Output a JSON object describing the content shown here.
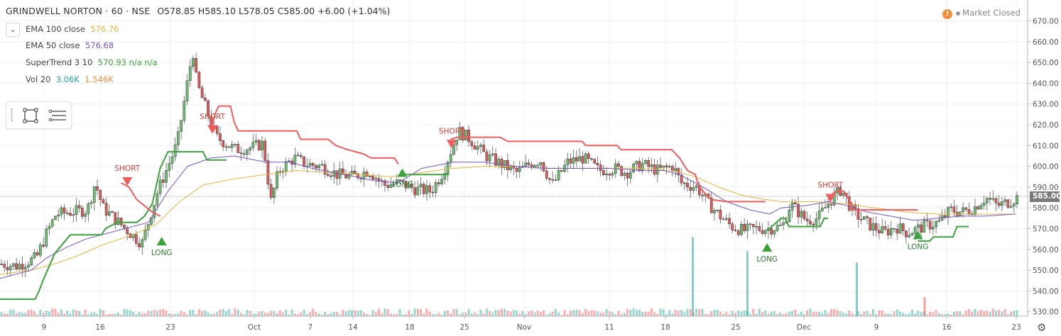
{
  "header": {
    "symbol": "GRINDWELL NORTON · 60 · NSE",
    "open": "O578.85",
    "high": "H585.10",
    "low": "L578.05",
    "close": "C585.00",
    "change": "+6.00 (+1.04%)"
  },
  "legend": [
    {
      "name": "EMA 100 close",
      "value": "576.76",
      "color": "#e8b53d"
    },
    {
      "name": "EMA 50 close",
      "value": "576.68",
      "color": "#7b52c7"
    },
    {
      "name": "SuperTrend 3 10",
      "value": "570.93 n/a n/a",
      "color": "#3ba33b",
      "extra_color": "#ef5350"
    },
    {
      "name": "Vol 20",
      "value": "3.06K",
      "value2": "1.546K",
      "color": "#26a69a",
      "color2": "#f68e3c"
    }
  ],
  "market_status": "Market Closed",
  "last_price": "585.00",
  "colors": {
    "up": "#26a69a",
    "down": "#ef5350",
    "ema100": "#e8b53d",
    "ema50": "#7b52c7",
    "st_up": "#3ba33b",
    "st_down": "#f25c5c",
    "grid": "#eef0f3"
  },
  "icons": {
    "collapse": "chevron-down-icon",
    "rect_tool": "rectangle-tool-icon",
    "lines_tool": "lines-tool-icon",
    "settings": "gear-icon",
    "warning": "warning-icon"
  },
  "chart_data": {
    "type": "candlestick",
    "title": "GRINDWELL NORTON · 60 · NSE",
    "x_tick_labels": [
      "9",
      "16",
      "23",
      "Oct",
      "7",
      "14",
      "18",
      "25",
      "Nov",
      "11",
      "18",
      "25",
      "Dec",
      "9",
      "16",
      "23"
    ],
    "y_tick_labels": [
      "530.00",
      "540.00",
      "550.00",
      "560.00",
      "570.00",
      "580.00",
      "590.00",
      "600.00",
      "610.00",
      "620.00",
      "630.00",
      "640.00",
      "650.00",
      "660.00",
      "670.00"
    ],
    "ylim": [
      527,
      674
    ],
    "grid": true,
    "close_path": [
      [
        0,
        553
      ],
      [
        0.02,
        552
      ],
      [
        0.045,
        556
      ],
      [
        0.058,
        568
      ],
      [
        0.07,
        577
      ],
      [
        0.11,
        579
      ],
      [
        0.12,
        592
      ],
      [
        0.13,
        580
      ],
      [
        0.15,
        573
      ],
      [
        0.17,
        566
      ],
      [
        0.18,
        563
      ],
      [
        0.2,
        588
      ],
      [
        0.225,
        611
      ],
      [
        0.245,
        656
      ],
      [
        0.25,
        640
      ],
      [
        0.275,
        614
      ],
      [
        0.3,
        608
      ],
      [
        0.32,
        609
      ],
      [
        0.335,
        611
      ],
      [
        0.345,
        583
      ],
      [
        0.355,
        598
      ],
      [
        0.375,
        604
      ],
      [
        0.39,
        601
      ],
      [
        0.41,
        600
      ],
      [
        0.43,
        596
      ],
      [
        0.45,
        595
      ],
      [
        0.47,
        598
      ],
      [
        0.49,
        591
      ],
      [
        0.51,
        592
      ],
      [
        0.53,
        589
      ],
      [
        0.55,
        588
      ],
      [
        0.565,
        597
      ],
      [
        0.575,
        607
      ],
      [
        0.585,
        617
      ],
      [
        0.6,
        613
      ],
      [
        0.62,
        605
      ],
      [
        0.635,
        602
      ],
      [
        0.66,
        597
      ],
      [
        0.675,
        601
      ],
      [
        0.69,
        603
      ],
      [
        0.705,
        591
      ],
      [
        0.725,
        602
      ],
      [
        0.745,
        604
      ],
      [
        0.765,
        598
      ],
      [
        0.785,
        599
      ],
      [
        0.8,
        597
      ],
      [
        0.82,
        601
      ],
      [
        0.84,
        598
      ],
      [
        0.86,
        600
      ],
      [
        0.87,
        592
      ],
      [
        0.89,
        590
      ],
      [
        0.905,
        582
      ],
      [
        0.92,
        576
      ],
      [
        0.935,
        571
      ],
      [
        0.95,
        569
      ],
      [
        0.965,
        570
      ],
      [
        0.98,
        570
      ],
      [
        1.0,
        571
      ],
      [
        1.01,
        582
      ],
      [
        1.03,
        574
      ],
      [
        1.045,
        575
      ],
      [
        1.06,
        583
      ],
      [
        1.075,
        589
      ],
      [
        1.09,
        578
      ],
      [
        1.11,
        572
      ],
      [
        1.13,
        568
      ],
      [
        1.145,
        571
      ],
      [
        1.16,
        568
      ],
      [
        1.18,
        571
      ],
      [
        1.2,
        573
      ],
      [
        1.215,
        579
      ],
      [
        1.23,
        578
      ],
      [
        1.245,
        580
      ],
      [
        1.26,
        585
      ],
      [
        1.275,
        581
      ],
      [
        1.29,
        583
      ],
      [
        1.3,
        585
      ]
    ],
    "volume_spikes": [
      {
        "x": 0.885,
        "v": 0.62,
        "dir": "up"
      },
      {
        "x": 0.955,
        "v": 0.51,
        "dir": "up"
      },
      {
        "x": 1.095,
        "v": 0.42,
        "dir": "up"
      },
      {
        "x": 1.505,
        "v": 0.15,
        "dir": "down"
      }
    ],
    "signals": [
      {
        "type": "SHORT",
        "x": 0.163,
        "y": 592
      },
      {
        "type": "LONG",
        "x": 0.207,
        "y": 566
      },
      {
        "type": "SHORT",
        "x": 0.272,
        "y": 617
      },
      {
        "type": "LONG",
        "x": 0.515,
        "y": 599
      },
      {
        "type": "SHORT",
        "x": 0.578,
        "y": 610
      },
      {
        "type": "LONG",
        "x": 0.982,
        "y": 563
      },
      {
        "type": "SHORT",
        "x": 1.063,
        "y": 584
      },
      {
        "type": "LONG",
        "x": 1.175,
        "y": 569
      }
    ],
    "supertrend_up": [
      [
        0,
        536
      ],
      [
        0.045,
        536
      ],
      [
        0.05,
        540
      ],
      [
        0.055,
        545
      ],
      [
        0.07,
        558
      ],
      [
        0.09,
        567
      ],
      [
        0.13,
        567
      ],
      [
        0.135,
        570
      ],
      [
        0.15,
        573
      ],
      [
        0.16,
        573
      ],
      [
        0.175,
        573
      ],
      [
        0.185,
        576
      ],
      [
        0.195,
        582
      ],
      [
        0.205,
        599
      ],
      [
        0.215,
        607
      ],
      [
        0.26,
        607
      ],
      [
        0.265,
        603
      ],
      [
        0.29,
        603
      ]
    ],
    "supertrend_up2": [
      [
        0.515,
        596
      ],
      [
        0.575,
        596
      ]
    ],
    "supertrend_up3": [
      [
        0.982,
        569
      ],
      [
        1.0,
        575
      ],
      [
        1.005,
        575
      ],
      [
        1.01,
        571
      ],
      [
        1.03,
        571
      ],
      [
        1.05,
        571
      ],
      [
        1.055,
        575
      ],
      [
        1.06,
        575
      ]
    ],
    "supertrend_up4": [
      [
        1.175,
        564
      ],
      [
        1.19,
        564
      ],
      [
        1.195,
        566
      ],
      [
        1.22,
        566
      ],
      [
        1.225,
        571
      ],
      [
        1.24,
        571
      ]
    ],
    "supertrend_down": [
      [
        0.155,
        592
      ],
      [
        0.165,
        590
      ],
      [
        0.175,
        584
      ],
      [
        0.185,
        581
      ],
      [
        0.195,
        578
      ],
      [
        0.205,
        576
      ],
      [
        0.27,
        617
      ],
      [
        0.275,
        625
      ],
      [
        0.28,
        629
      ],
      [
        0.295,
        629
      ],
      [
        0.3,
        621
      ],
      [
        0.305,
        617
      ],
      [
        0.36,
        617
      ],
      [
        0.38,
        617
      ],
      [
        0.385,
        613
      ],
      [
        0.42,
        613
      ],
      [
        0.43,
        610
      ],
      [
        0.445,
        608
      ],
      [
        0.465,
        606
      ],
      [
        0.475,
        604
      ],
      [
        0.505,
        604
      ],
      [
        0.51,
        601
      ],
      [
        0.577,
        613
      ],
      [
        0.585,
        614
      ],
      [
        0.64,
        614
      ],
      [
        0.65,
        612
      ],
      [
        0.71,
        612
      ],
      [
        0.745,
        612
      ],
      [
        0.75,
        610
      ],
      [
        0.79,
        610
      ],
      [
        0.795,
        608
      ],
      [
        0.86,
        608
      ],
      [
        0.87,
        604
      ],
      [
        0.875,
        601
      ],
      [
        0.88,
        598
      ],
      [
        0.89,
        596
      ],
      [
        0.895,
        590
      ],
      [
        0.91,
        584
      ],
      [
        0.93,
        583
      ],
      [
        0.98,
        583
      ],
      [
        1.06,
        585
      ],
      [
        1.07,
        588
      ],
      [
        1.08,
        588
      ],
      [
        1.09,
        582
      ],
      [
        1.09,
        579
      ],
      [
        1.16,
        579
      ],
      [
        1.175,
        579
      ]
    ],
    "ema50": [
      [
        0,
        546
      ],
      [
        0.04,
        550
      ],
      [
        0.06,
        556
      ],
      [
        0.085,
        561
      ],
      [
        0.11,
        565
      ],
      [
        0.15,
        569
      ],
      [
        0.19,
        573
      ],
      [
        0.215,
        588
      ],
      [
        0.24,
        600
      ],
      [
        0.27,
        604
      ],
      [
        0.3,
        605
      ],
      [
        0.34,
        602
      ],
      [
        0.37,
        602
      ],
      [
        0.4,
        599
      ],
      [
        0.44,
        596
      ],
      [
        0.48,
        593
      ],
      [
        0.51,
        592
      ],
      [
        0.54,
        599
      ],
      [
        0.58,
        602
      ],
      [
        0.62,
        602
      ],
      [
        0.66,
        600
      ],
      [
        0.7,
        599
      ],
      [
        0.74,
        599
      ],
      [
        0.78,
        599
      ],
      [
        0.82,
        598
      ],
      [
        0.85,
        598
      ],
      [
        0.87,
        596
      ],
      [
        0.9,
        590
      ],
      [
        0.93,
        583
      ],
      [
        0.96,
        579
      ],
      [
        0.985,
        577
      ],
      [
        1.0,
        580
      ],
      [
        1.03,
        581
      ],
      [
        1.06,
        583
      ],
      [
        1.085,
        581
      ],
      [
        1.11,
        578
      ],
      [
        1.14,
        576
      ],
      [
        1.17,
        574
      ],
      [
        1.2,
        575
      ],
      [
        1.23,
        576
      ],
      [
        1.26,
        576
      ],
      [
        1.3,
        577
      ]
    ],
    "ema100": [
      [
        0,
        548
      ],
      [
        0.04,
        550
      ],
      [
        0.07,
        553
      ],
      [
        0.1,
        557
      ],
      [
        0.13,
        562
      ],
      [
        0.17,
        567
      ],
      [
        0.2,
        572
      ],
      [
        0.23,
        583
      ],
      [
        0.26,
        591
      ],
      [
        0.3,
        594
      ],
      [
        0.34,
        596
      ],
      [
        0.38,
        598
      ],
      [
        0.42,
        597
      ],
      [
        0.46,
        596
      ],
      [
        0.5,
        595
      ],
      [
        0.54,
        597
      ],
      [
        0.58,
        599
      ],
      [
        0.62,
        600
      ],
      [
        0.66,
        600
      ],
      [
        0.7,
        599
      ],
      [
        0.74,
        599
      ],
      [
        0.78,
        599
      ],
      [
        0.82,
        599
      ],
      [
        0.86,
        598
      ],
      [
        0.89,
        595
      ],
      [
        0.92,
        590
      ],
      [
        0.95,
        586
      ],
      [
        0.98,
        584
      ],
      [
        1.0,
        583
      ],
      [
        1.04,
        583
      ],
      [
        1.08,
        582
      ],
      [
        1.12,
        580
      ],
      [
        1.16,
        578
      ],
      [
        1.2,
        577
      ],
      [
        1.24,
        577
      ],
      [
        1.3,
        577
      ]
    ]
  }
}
